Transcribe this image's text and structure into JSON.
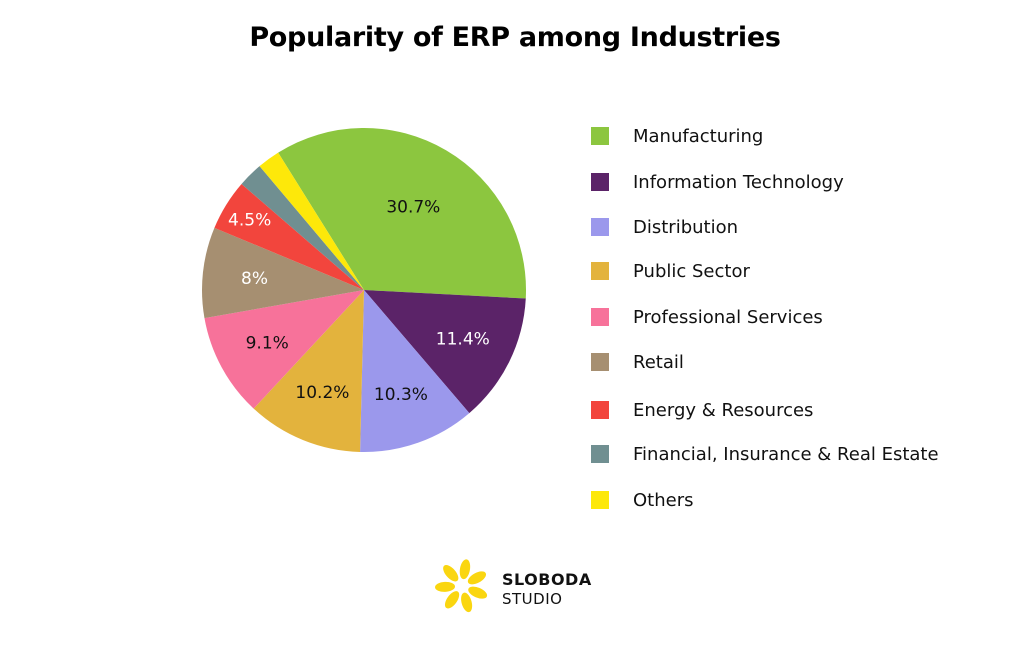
{
  "chart_data": {
    "type": "pie",
    "title": "Popularity of ERP among Industries",
    "legend_position": "right",
    "slices": [
      {
        "label": "Manufacturing",
        "value": 30.7,
        "display": "30.7%",
        "color": "#8cc63f",
        "text_color": "#111111"
      },
      {
        "label": "Information Technology",
        "value": 11.4,
        "display": "11.4%",
        "color": "#5b2368",
        "text_color": "#ffffff"
      },
      {
        "label": "Distribution",
        "value": 10.3,
        "display": "10.3%",
        "color": "#9b98ec",
        "text_color": "#111111"
      },
      {
        "label": "Public Sector",
        "value": 10.2,
        "display": "10.2%",
        "color": "#e3b33d",
        "text_color": "#111111"
      },
      {
        "label": "Professional Services",
        "value": 9.1,
        "display": "9.1%",
        "color": "#f7729a",
        "text_color": "#111111"
      },
      {
        "label": "Retail",
        "value": 8,
        "display": "8%",
        "color": "#a68f71",
        "text_color": "#ffffff"
      },
      {
        "label": "Energy & Resources",
        "value": 4.5,
        "display": "4.5%",
        "color": "#f2453d",
        "text_color": "#ffffff"
      },
      {
        "label": "Financial, Insurance & Real Estate",
        "value": 2.2,
        "display": "",
        "color": "#708f91",
        "text_color": "#ffffff"
      },
      {
        "label": "Others",
        "value": 2.0,
        "display": "",
        "color": "#fde80a",
        "text_color": "#111111"
      }
    ]
  },
  "branding": {
    "line1": "SLOBODA",
    "line2": "STUDIO",
    "color": "#fad610"
  }
}
